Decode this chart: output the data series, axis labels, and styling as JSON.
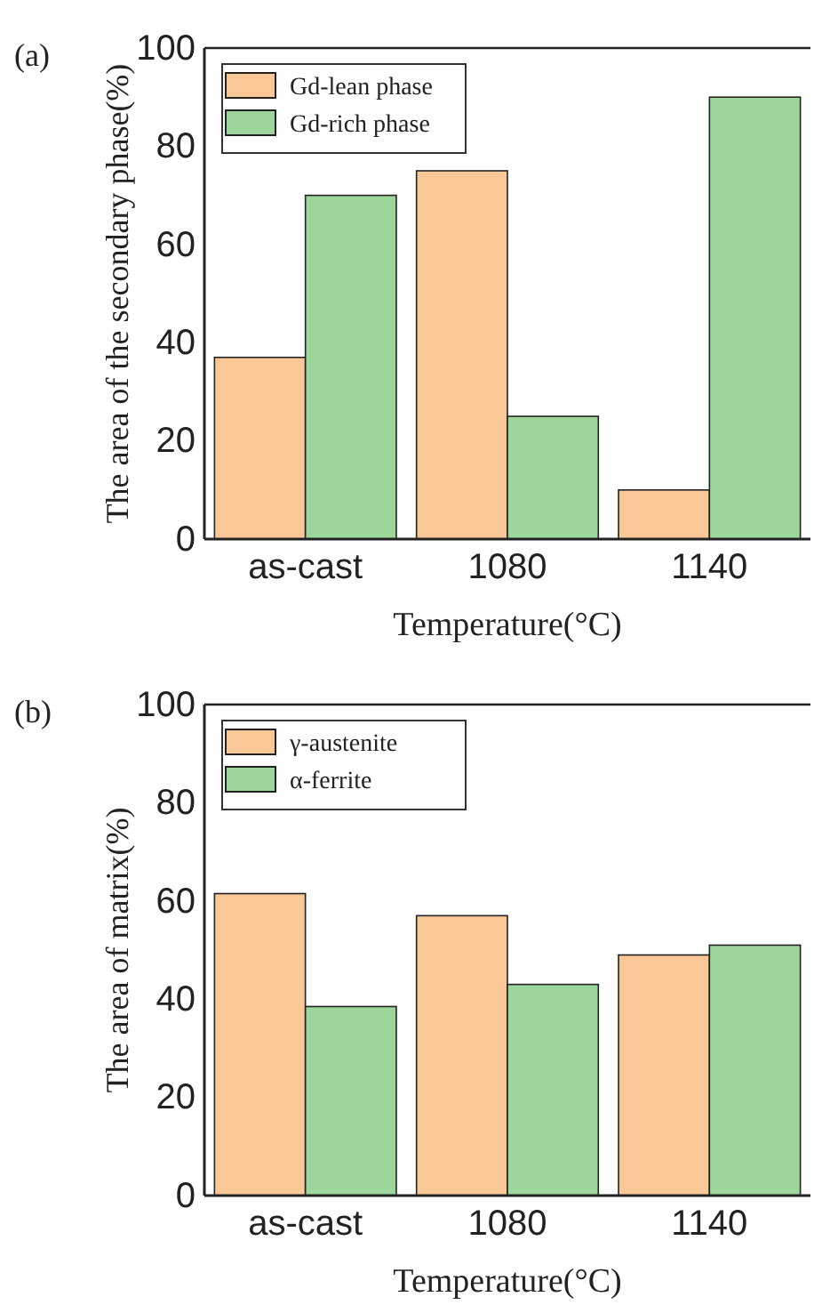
{
  "chart_data": [
    {
      "type": "bar",
      "categories": [
        "as-cast",
        "1080",
        "1140"
      ],
      "xlabel": "Temperature(°C)",
      "ylabel": "The area of the secondary phase(%)",
      "ylim": [
        0,
        100
      ],
      "yticks": [
        0,
        20,
        40,
        60,
        80,
        100
      ],
      "legend": "top left",
      "annotations": [
        "(a)"
      ],
      "series": [
        {
          "name": "Gd-lean phase",
          "color": "#fac896",
          "values": [
            37,
            75,
            10
          ]
        },
        {
          "name": "Gd-rich phase",
          "color": "#9dd69b",
          "values": [
            70,
            25,
            90
          ]
        }
      ]
    },
    {
      "type": "bar",
      "categories": [
        "as-cast",
        "1080",
        "1140"
      ],
      "xlabel": "Temperature(°C)",
      "ylabel": "The area of matrix(%)",
      "ylim": [
        0,
        100
      ],
      "yticks": [
        0,
        20,
        40,
        60,
        80,
        100
      ],
      "legend": "top left",
      "annotations": [
        "(b)"
      ],
      "series": [
        {
          "name": "γ-austenite",
          "color": "#fac896",
          "values": [
            61.5,
            57,
            49
          ]
        },
        {
          "name": "α-ferrite",
          "color": "#9dd69b",
          "values": [
            38.5,
            43,
            51
          ]
        }
      ]
    }
  ]
}
